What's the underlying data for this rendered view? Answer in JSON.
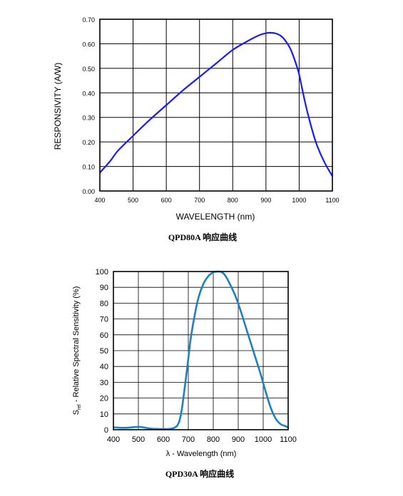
{
  "chart_data": [
    {
      "type": "line",
      "caption": "QPD80A 响应曲线",
      "xlabel": "WAVELENGTH (nm)",
      "ylabel": "RESPONSIVITY (A/W)",
      "xlim": [
        400,
        1100
      ],
      "ylim": [
        0,
        0.7
      ],
      "x_ticks": [
        "400",
        "500",
        "600",
        "700",
        "800",
        "900",
        "1000",
        "1100"
      ],
      "y_ticks": [
        "0.00",
        "0.10",
        "0.20",
        "0.30",
        "0.40",
        "0.50",
        "0.60",
        "0.70"
      ],
      "grid": true,
      "line_color": "#1a1aff",
      "series": [
        {
          "x": [
            400,
            430,
            455,
            500,
            550,
            600,
            650,
            700,
            750,
            800,
            850,
            880,
            900,
            915,
            930,
            945,
            960,
            975,
            990,
            1000,
            1010,
            1025,
            1050,
            1075,
            1100
          ],
          "y": [
            0.075,
            0.12,
            0.165,
            0.225,
            0.29,
            0.35,
            0.41,
            0.465,
            0.52,
            0.575,
            0.615,
            0.635,
            0.643,
            0.645,
            0.642,
            0.632,
            0.61,
            0.575,
            0.52,
            0.475,
            0.41,
            0.32,
            0.2,
            0.12,
            0.06
          ]
        }
      ]
    },
    {
      "type": "line",
      "caption": "QPD30A 响应曲线",
      "xlabel": "λ - Wavelength (nm)",
      "ylabel_main": "S",
      "ylabel_sub": "rel",
      "ylabel_rest": " - Relative Spectral Sensitivity (%)",
      "xlim": [
        400,
        1100
      ],
      "ylim": [
        0,
        100
      ],
      "x_ticks": [
        "400",
        "500",
        "600",
        "700",
        "800",
        "900",
        "1000",
        "1100"
      ],
      "y_ticks": [
        "0",
        "10",
        "20",
        "30",
        "40",
        "50",
        "60",
        "70",
        "80",
        "90",
        "100"
      ],
      "grid": true,
      "line_color": "#1f7fc0",
      "series": [
        {
          "x": [
            400,
            420,
            440,
            460,
            480,
            500,
            520,
            540,
            560,
            580,
            600,
            620,
            640,
            655,
            665,
            675,
            690,
            700,
            710,
            725,
            740,
            760,
            780,
            800,
            820,
            835,
            850,
            870,
            890,
            910,
            930,
            950,
            970,
            990,
            1010,
            1030,
            1050,
            1070,
            1085,
            1100
          ],
          "y": [
            1.5,
            1.3,
            1.2,
            1.3,
            1.6,
            1.8,
            1.5,
            0.9,
            0.6,
            0.5,
            0.4,
            0.5,
            1.0,
            2.5,
            6,
            14,
            32,
            45,
            58,
            72,
            83,
            92,
            97,
            99.5,
            100,
            99.5,
            97,
            91,
            84,
            75,
            65,
            55,
            45,
            35,
            24,
            14,
            7,
            3.5,
            2.5,
            1.5
          ]
        }
      ]
    }
  ]
}
